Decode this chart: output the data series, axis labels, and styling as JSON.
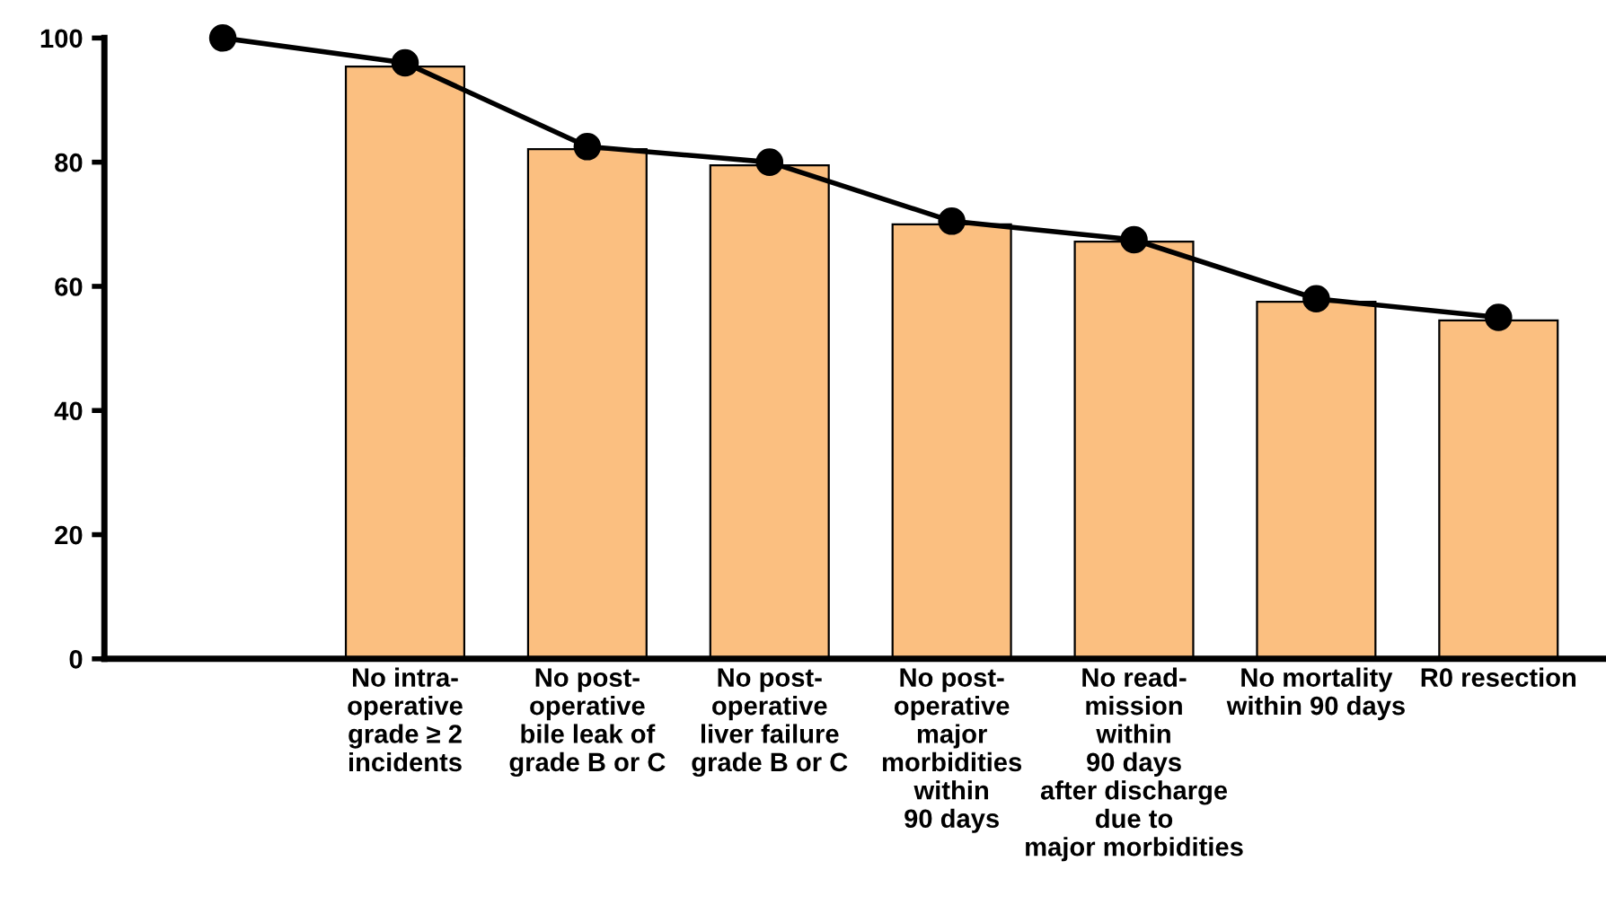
{
  "chart_data": {
    "type": "bar",
    "categories": [
      null,
      "No intra-\noperative\ngrade ≥ 2\nincidents",
      "No post-\noperative\nbile leak of\ngrade B or C",
      "No post-\noperative\nliver failure\ngrade B or C",
      "No post-\noperative\nmajor\nmorbidities\nwithin\n90 days",
      "No read-\nmission\nwithin\n90 days\nafter discharge\ndue to\nmajor morbidities",
      "No mortality\nwithin 90 days",
      "R0 resection"
    ],
    "series": [
      {
        "color": "#fbbf80",
        "values": [
          null,
          95.4,
          82.1,
          79.5,
          70,
          67.2,
          57.5,
          54.5
        ]
      },
      {
        "type": "line",
        "color": "#000000",
        "marker": "circle",
        "line_style": "solid",
        "values": [
          100,
          96,
          82.5,
          80,
          70.5,
          67.5,
          58,
          55
        ]
      }
    ],
    "ylim": [
      0,
      100
    ],
    "yticks": [
      0,
      20,
      40,
      60,
      80,
      100
    ],
    "grid": false,
    "legend": false
  }
}
